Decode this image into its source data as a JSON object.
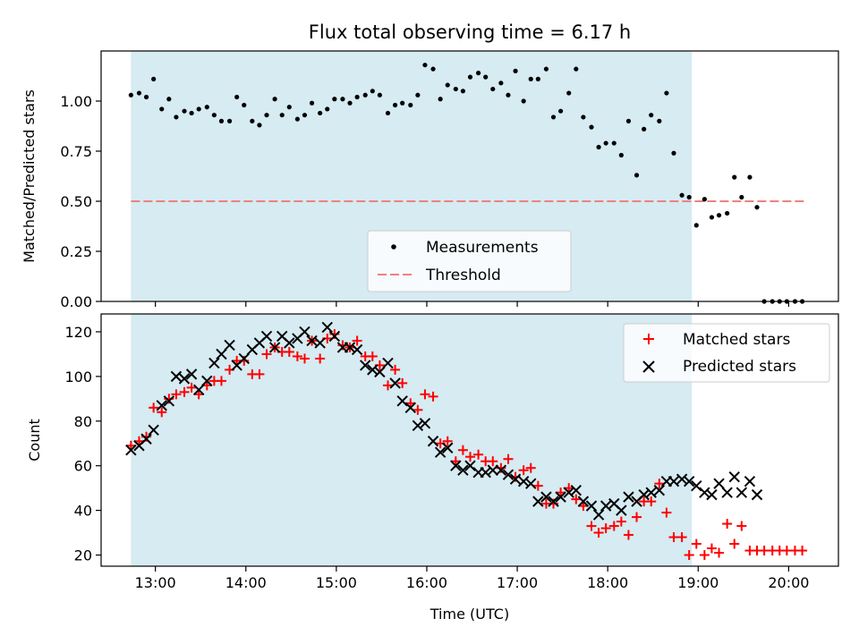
{
  "chart_data": [
    {
      "type": "scatter",
      "title": "Flux total observing time = 6.17 h",
      "ylabel": "Matched/Predicted stars",
      "xlabel": "",
      "xlim": [
        12.4,
        20.55
      ],
      "ylim": [
        0,
        1.25
      ],
      "yticks": [
        0.0,
        0.25,
        0.5,
        0.75,
        1.0
      ],
      "ytick_labels": [
        "0.00",
        "0.25",
        "0.50",
        "0.75",
        "1.00"
      ],
      "shaded_span": [
        12.73,
        18.93
      ],
      "threshold": {
        "name": "Threshold",
        "value": 0.5,
        "x_range": [
          12.73,
          20.2
        ],
        "color": "#f08080"
      },
      "legend": {
        "position": "lower-center",
        "entries": [
          "Measurements",
          "Threshold"
        ]
      },
      "series": [
        {
          "name": "Measurements",
          "marker": "dot",
          "color": "#000000",
          "x": [
            12.73,
            12.82,
            12.9,
            12.98,
            13.07,
            13.15,
            13.23,
            13.32,
            13.4,
            13.48,
            13.57,
            13.65,
            13.73,
            13.82,
            13.9,
            13.98,
            14.07,
            14.15,
            14.23,
            14.32,
            14.4,
            14.48,
            14.57,
            14.65,
            14.73,
            14.82,
            14.9,
            14.98,
            15.07,
            15.15,
            15.23,
            15.32,
            15.4,
            15.48,
            15.57,
            15.65,
            15.73,
            15.82,
            15.9,
            15.98,
            16.07,
            16.15,
            16.23,
            16.32,
            16.4,
            16.48,
            16.57,
            16.65,
            16.73,
            16.82,
            16.9,
            16.98,
            17.07,
            17.15,
            17.23,
            17.32,
            17.4,
            17.48,
            17.57,
            17.65,
            17.73,
            17.82,
            17.9,
            17.98,
            18.07,
            18.15,
            18.23,
            18.32,
            18.4,
            18.48,
            18.57,
            18.65,
            18.73,
            18.82,
            18.9,
            18.98,
            19.07,
            19.15,
            19.23,
            19.32,
            19.4,
            19.48,
            19.57,
            19.65,
            19.73,
            19.82,
            19.9,
            19.98,
            20.07,
            20.15
          ],
          "y": [
            1.03,
            1.04,
            1.02,
            1.11,
            0.96,
            1.01,
            0.92,
            0.95,
            0.94,
            0.96,
            0.97,
            0.93,
            0.9,
            0.9,
            1.02,
            0.98,
            0.9,
            0.88,
            0.93,
            1.01,
            0.93,
            0.97,
            0.91,
            0.93,
            0.99,
            0.94,
            0.96,
            1.01,
            1.01,
            0.99,
            1.02,
            1.03,
            1.05,
            1.03,
            0.94,
            0.98,
            0.99,
            0.98,
            1.03,
            1.18,
            1.16,
            1.01,
            1.08,
            1.06,
            1.05,
            1.12,
            1.14,
            1.12,
            1.06,
            1.09,
            1.03,
            1.15,
            1.0,
            1.11,
            1.11,
            1.16,
            0.92,
            0.95,
            1.04,
            1.16,
            0.92,
            0.87,
            0.77,
            0.79,
            0.79,
            0.73,
            0.9,
            0.63,
            0.86,
            0.93,
            0.9,
            1.04,
            0.74,
            0.53,
            0.52,
            0.38,
            0.51,
            0.42,
            0.43,
            0.44,
            0.62,
            0.52,
            0.62,
            0.47,
            0.0,
            0.0,
            0.0,
            0.0,
            0.0,
            0.0
          ]
        }
      ]
    },
    {
      "type": "scatter",
      "title": "",
      "ylabel": "Count",
      "xlabel": "Time (UTC)",
      "xlim": [
        12.4,
        20.55
      ],
      "ylim": [
        15,
        128
      ],
      "yticks": [
        20,
        40,
        60,
        80,
        100,
        120
      ],
      "ytick_labels": [
        "20",
        "40",
        "60",
        "80",
        "100",
        "120"
      ],
      "xticks": [
        13,
        14,
        15,
        16,
        17,
        18,
        19,
        20
      ],
      "xtick_labels": [
        "13:00",
        "14:00",
        "15:00",
        "16:00",
        "17:00",
        "18:00",
        "19:00",
        "20:00"
      ],
      "shaded_span": [
        12.73,
        18.93
      ],
      "legend": {
        "position": "top-right",
        "entries": [
          "Matched stars",
          "Predicted stars"
        ]
      },
      "series": [
        {
          "name": "Matched stars",
          "marker": "plus",
          "color": "#ff0000",
          "x": [
            12.73,
            12.82,
            12.9,
            12.98,
            13.07,
            13.15,
            13.23,
            13.32,
            13.4,
            13.48,
            13.57,
            13.65,
            13.73,
            13.82,
            13.9,
            13.98,
            14.07,
            14.15,
            14.23,
            14.32,
            14.4,
            14.48,
            14.57,
            14.65,
            14.73,
            14.82,
            14.9,
            14.98,
            15.07,
            15.15,
            15.23,
            15.32,
            15.4,
            15.48,
            15.57,
            15.65,
            15.73,
            15.82,
            15.9,
            15.98,
            16.07,
            16.15,
            16.23,
            16.32,
            16.4,
            16.48,
            16.57,
            16.65,
            16.73,
            16.82,
            16.9,
            16.98,
            17.07,
            17.15,
            17.23,
            17.32,
            17.4,
            17.48,
            17.57,
            17.65,
            17.73,
            17.82,
            17.9,
            17.98,
            18.07,
            18.15,
            18.23,
            18.32,
            18.4,
            18.48,
            18.57,
            18.65,
            18.73,
            18.82,
            18.9,
            18.98,
            19.07,
            19.15,
            19.23,
            19.32,
            19.4,
            19.48,
            19.57,
            19.65,
            19.73,
            19.82,
            19.9,
            19.98,
            20.07,
            20.15
          ],
          "y": [
            69,
            71,
            73,
            86,
            84,
            90,
            92,
            93,
            95,
            92,
            96,
            98,
            98,
            103,
            107,
            107,
            101,
            101,
            110,
            113,
            111,
            111,
            109,
            108,
            116,
            108,
            117,
            119,
            114,
            113,
            116,
            109,
            109,
            105,
            96,
            103,
            97,
            88,
            85,
            92,
            91,
            70,
            71,
            62,
            67,
            64,
            65,
            62,
            62,
            59,
            63,
            55,
            58,
            59,
            51,
            43,
            43,
            48,
            50,
            45,
            42,
            33,
            30,
            32,
            33,
            35,
            29,
            37,
            44,
            44,
            52,
            39,
            28,
            28,
            20,
            25,
            20,
            23,
            21,
            34,
            25,
            33,
            22,
            22,
            22,
            22,
            22,
            22,
            22,
            22
          ]
        },
        {
          "name": "Predicted stars",
          "marker": "x",
          "color": "#000000",
          "x": [
            12.73,
            12.82,
            12.9,
            12.98,
            13.07,
            13.15,
            13.23,
            13.32,
            13.4,
            13.48,
            13.57,
            13.65,
            13.73,
            13.82,
            13.9,
            13.98,
            14.07,
            14.15,
            14.23,
            14.32,
            14.4,
            14.48,
            14.57,
            14.65,
            14.73,
            14.82,
            14.9,
            14.98,
            15.07,
            15.15,
            15.23,
            15.32,
            15.4,
            15.48,
            15.57,
            15.65,
            15.73,
            15.82,
            15.9,
            15.98,
            16.07,
            16.15,
            16.23,
            16.32,
            16.4,
            16.48,
            16.57,
            16.65,
            16.73,
            16.82,
            16.9,
            16.98,
            17.07,
            17.15,
            17.23,
            17.32,
            17.4,
            17.48,
            17.57,
            17.65,
            17.73,
            17.82,
            17.9,
            17.98,
            18.07,
            18.15,
            18.23,
            18.32,
            18.4,
            18.48,
            18.57,
            18.65,
            18.73,
            18.82,
            18.9,
            18.98,
            19.07,
            19.15,
            19.23,
            19.32,
            19.4,
            19.48,
            19.57,
            19.65
          ],
          "y": [
            67,
            69,
            72,
            76,
            87,
            89,
            100,
            99,
            101,
            94,
            98,
            106,
            110,
            114,
            105,
            108,
            112,
            115,
            118,
            113,
            118,
            115,
            117,
            120,
            116,
            115,
            122,
            118,
            113,
            113,
            112,
            105,
            103,
            102,
            106,
            97,
            89,
            86,
            78,
            79,
            71,
            66,
            68,
            60,
            58,
            60,
            57,
            57,
            58,
            58,
            56,
            54,
            53,
            52,
            44,
            46,
            44,
            46,
            48,
            49,
            44,
            42,
            38,
            42,
            43,
            40,
            46,
            44,
            47,
            48,
            49,
            53,
            53,
            54,
            53,
            51,
            48,
            47,
            52,
            48,
            55,
            48,
            53,
            47
          ]
        }
      ]
    }
  ]
}
